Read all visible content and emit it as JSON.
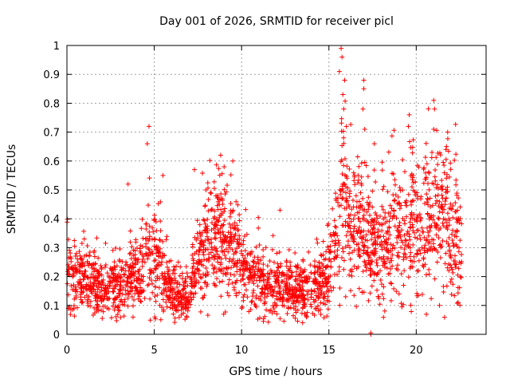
{
  "chart_data": {
    "type": "scatter",
    "title": "Day 001 of 2026, SRMTID for receiver picl",
    "xlabel": "GPS time / hours",
    "ylabel": "SRMTID / TECUs",
    "xlim": [
      0,
      24
    ],
    "ylim": [
      0,
      1
    ],
    "xticks": [
      0,
      5,
      10,
      15,
      20
    ],
    "xtick_labels": [
      "0",
      "5",
      "10",
      "15",
      "20"
    ],
    "yticks": [
      0,
      0.1,
      0.2,
      0.3,
      0.4,
      0.5,
      0.6,
      0.7,
      0.8,
      0.9,
      1
    ],
    "ytick_labels": [
      "0",
      "0.1",
      "0.2",
      "0.3",
      "0.4",
      "0.5",
      "0.6",
      "0.7",
      "0.8",
      "0.9",
      "1"
    ],
    "grid": true,
    "marker": "+",
    "color": "#ff0000",
    "trend_profile": [
      {
        "x": 0.0,
        "y": 0.22
      },
      {
        "x": 1.0,
        "y": 0.18
      },
      {
        "x": 2.0,
        "y": 0.16
      },
      {
        "x": 3.0,
        "y": 0.17
      },
      {
        "x": 4.0,
        "y": 0.2
      },
      {
        "x": 4.7,
        "y": 0.28
      },
      {
        "x": 5.5,
        "y": 0.22
      },
      {
        "x": 6.0,
        "y": 0.13
      },
      {
        "x": 7.0,
        "y": 0.11
      },
      {
        "x": 7.5,
        "y": 0.27
      },
      {
        "x": 8.5,
        "y": 0.33
      },
      {
        "x": 9.5,
        "y": 0.31
      },
      {
        "x": 10.5,
        "y": 0.2
      },
      {
        "x": 11.5,
        "y": 0.18
      },
      {
        "x": 12.5,
        "y": 0.16
      },
      {
        "x": 13.5,
        "y": 0.14
      },
      {
        "x": 14.5,
        "y": 0.17
      },
      {
        "x": 15.0,
        "y": 0.21
      },
      {
        "x": 15.7,
        "y": 0.45
      },
      {
        "x": 16.5,
        "y": 0.38
      },
      {
        "x": 17.5,
        "y": 0.3
      },
      {
        "x": 18.5,
        "y": 0.32
      },
      {
        "x": 19.5,
        "y": 0.36
      },
      {
        "x": 20.5,
        "y": 0.38
      },
      {
        "x": 21.5,
        "y": 0.42
      },
      {
        "x": 22.6,
        "y": 0.3
      }
    ],
    "outliers": [
      {
        "x": 4.7,
        "y": 0.72
      },
      {
        "x": 4.6,
        "y": 0.66
      },
      {
        "x": 3.5,
        "y": 0.52
      },
      {
        "x": 5.5,
        "y": 0.55
      },
      {
        "x": 7.3,
        "y": 0.57
      },
      {
        "x": 8.8,
        "y": 0.62
      },
      {
        "x": 9.0,
        "y": 0.58
      },
      {
        "x": 9.5,
        "y": 0.6
      },
      {
        "x": 12.2,
        "y": 0.43
      },
      {
        "x": 15.7,
        "y": 0.99
      },
      {
        "x": 15.75,
        "y": 0.96
      },
      {
        "x": 15.6,
        "y": 0.91
      },
      {
        "x": 15.9,
        "y": 0.88
      },
      {
        "x": 15.8,
        "y": 0.83
      },
      {
        "x": 15.85,
        "y": 0.78
      },
      {
        "x": 16.0,
        "y": 0.72
      },
      {
        "x": 17.0,
        "y": 0.88
      },
      {
        "x": 17.0,
        "y": 0.85
      },
      {
        "x": 16.95,
        "y": 0.78
      },
      {
        "x": 17.05,
        "y": 0.71
      },
      {
        "x": 17.6,
        "y": 0.66
      },
      {
        "x": 19.6,
        "y": 0.76
      },
      {
        "x": 19.55,
        "y": 0.72
      },
      {
        "x": 21.0,
        "y": 0.81
      },
      {
        "x": 21.05,
        "y": 0.78
      },
      {
        "x": 21.0,
        "y": 0.71
      },
      {
        "x": 21.8,
        "y": 0.7
      },
      {
        "x": 21.7,
        "y": 0.64
      },
      {
        "x": 20.9,
        "y": 0.63
      },
      {
        "x": 22.4,
        "y": 0.11
      },
      {
        "x": 17.4,
        "y": 0.0
      },
      {
        "x": 17.4,
        "y": 0.005
      }
    ]
  }
}
